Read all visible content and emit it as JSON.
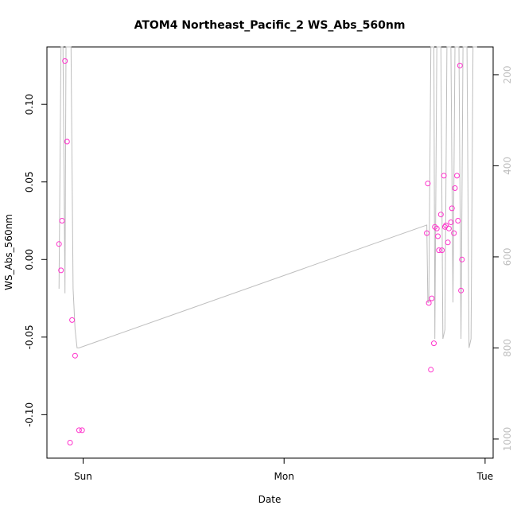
{
  "chart_data": {
    "type": "scatter",
    "title": "ATOM4 Northeast_Pacific_2 WS_Abs_560nm",
    "xlabel": "Date",
    "ylabel": "WS_Abs_560nm",
    "x_ticks": [
      {
        "label": "Sun",
        "x": 1.0
      },
      {
        "label": "Mon",
        "x": 2.0
      },
      {
        "label": "Tue",
        "x": 3.0
      }
    ],
    "xlim": [
      0.82,
      3.04
    ],
    "ylim": [
      -0.128,
      0.137
    ],
    "y_ticks": [
      -0.1,
      -0.05,
      0.0,
      0.05,
      0.1
    ],
    "y_tick_labels": [
      "-0.10",
      "-0.05",
      "0.00",
      "0.05",
      "0.10"
    ],
    "y2_ticks": [
      200,
      400,
      600,
      800,
      1000
    ],
    "y2_tick_labels": [
      "200",
      "400",
      "600",
      "800",
      "1000"
    ],
    "y2lim": [
      1042,
      139
    ],
    "series": [
      {
        "kind": "points",
        "color": "#ff33cc",
        "x": [
          0.88,
          0.89,
          0.895,
          0.91,
          0.92,
          0.935,
          0.945,
          0.96,
          0.98,
          0.995,
          2.71,
          2.715,
          2.72,
          2.73,
          2.735,
          2.745,
          2.75,
          2.76,
          2.765,
          2.77,
          2.78,
          2.785,
          2.795,
          2.8,
          2.805,
          2.815,
          2.82,
          2.83,
          2.835,
          2.845,
          2.85,
          2.86,
          2.865,
          2.875,
          2.88,
          2.885
        ],
        "y": [
          0.01,
          -0.007,
          0.025,
          0.128,
          0.076,
          -0.118,
          -0.039,
          -0.062,
          -0.11,
          -0.11,
          0.017,
          0.049,
          -0.028,
          -0.071,
          -0.025,
          -0.054,
          0.021,
          0.02,
          0.015,
          0.006,
          0.029,
          0.006,
          0.054,
          0.021,
          0.022,
          0.011,
          0.02,
          0.024,
          0.033,
          0.017,
          0.046,
          0.054,
          0.025,
          0.125,
          -0.02,
          0.0
        ]
      }
    ],
    "depth_line": {
      "color": "#bebebe",
      "x": [
        0.88,
        0.89,
        0.9,
        0.91,
        0.915,
        0.92,
        0.93,
        0.94,
        0.95,
        0.96,
        0.97,
        0.98,
        2.71,
        2.715,
        2.72,
        2.73,
        2.74,
        2.745,
        2.75,
        2.76,
        2.77,
        2.78,
        2.79,
        2.8,
        2.81,
        2.82,
        2.83,
        2.84,
        2.85,
        2.86,
        2.87,
        2.88,
        2.89,
        2.9,
        2.91,
        2.92,
        2.93,
        2.94,
        2.95,
        2.96
      ],
      "depth": [
        670,
        139,
        139,
        680,
        139,
        139,
        139,
        139,
        670,
        760,
        800,
        800,
        530,
        700,
        700,
        139,
        139,
        139,
        780,
        139,
        139,
        139,
        780,
        760,
        139,
        139,
        139,
        700,
        139,
        139,
        139,
        780,
        139,
        139,
        139,
        800,
        780,
        139,
        139,
        139
      ]
    }
  }
}
